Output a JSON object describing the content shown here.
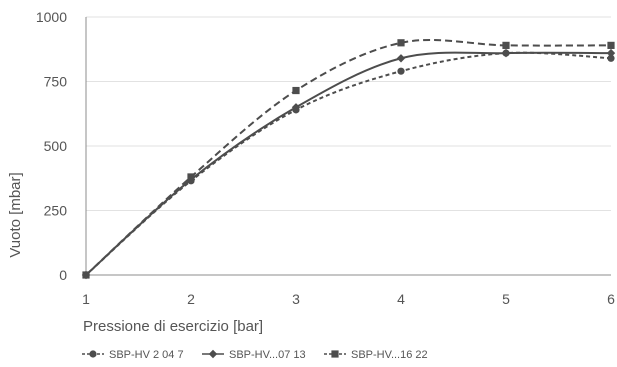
{
  "chart_data": {
    "type": "line",
    "xlabel": "Pressione di esercizio [bar]",
    "ylabel": "Vuoto [mbar]",
    "x": [
      1,
      2,
      3,
      4,
      5,
      6
    ],
    "xlim": [
      1,
      6
    ],
    "ylim": [
      0,
      1000
    ],
    "x_ticks": [
      "1",
      "2",
      "3",
      "4",
      "5",
      "6"
    ],
    "y_ticks": [
      "0",
      "250",
      "500",
      "750",
      "1000"
    ],
    "grid": "horizontal",
    "legend_position": "bottom",
    "series": [
      {
        "name": "SBP-HV 2 04 7",
        "values": [
          0,
          365,
          640,
          790,
          860,
          840
        ],
        "marker": "circle",
        "dash": "4,3",
        "color": "#4d4d4d"
      },
      {
        "name": "SBP-HV...07 13",
        "values": [
          0,
          370,
          650,
          840,
          860,
          860
        ],
        "marker": "diamond",
        "dash": "none",
        "color": "#4d4d4d"
      },
      {
        "name": "SBP-HV...16 22",
        "values": [
          0,
          380,
          715,
          900,
          890,
          890
        ],
        "marker": "square",
        "dash": "7,4",
        "color": "#4d4d4d"
      }
    ]
  }
}
